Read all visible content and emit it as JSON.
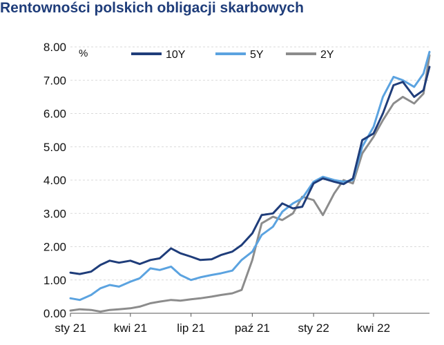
{
  "chart_data": {
    "type": "line",
    "title": "Rentowności polskich obligacji skarbowych",
    "unit_label": "%",
    "ylim": [
      0,
      8
    ],
    "y_ticks": [
      "0.00",
      "1.00",
      "2.00",
      "3.00",
      "4.00",
      "5.00",
      "6.00",
      "7.00",
      "8.00"
    ],
    "x_tick_labels": [
      "sty 21",
      "kwi 21",
      "lip 21",
      "paź 21",
      "sty 22",
      "kwi 22"
    ],
    "x_ticks": [
      "2021-01-01",
      "2021-04-01",
      "2021-07-01",
      "2021-10-01",
      "2022-01-01",
      "2022-04-01"
    ],
    "xlim": [
      "2021-01-01",
      "2022-06-24"
    ],
    "grid": "horizontal",
    "legend_position": "top",
    "series": [
      {
        "name": "10Y",
        "color": "#1f3d7a",
        "x": [
          "2021-01-01",
          "2021-01-15",
          "2021-02-01",
          "2021-02-15",
          "2021-03-01",
          "2021-03-15",
          "2021-04-01",
          "2021-04-15",
          "2021-05-01",
          "2021-05-15",
          "2021-06-01",
          "2021-06-15",
          "2021-07-01",
          "2021-07-15",
          "2021-08-01",
          "2021-08-15",
          "2021-09-01",
          "2021-09-15",
          "2021-10-01",
          "2021-10-15",
          "2021-11-01",
          "2021-11-15",
          "2021-12-01",
          "2021-12-15",
          "2022-01-01",
          "2022-01-15",
          "2022-02-01",
          "2022-02-15",
          "2022-03-01",
          "2022-03-15",
          "2022-04-01",
          "2022-04-15",
          "2022-05-01",
          "2022-05-15",
          "2022-06-01",
          "2022-06-15",
          "2022-06-24"
        ],
        "values": [
          1.22,
          1.18,
          1.25,
          1.45,
          1.58,
          1.52,
          1.58,
          1.48,
          1.6,
          1.65,
          1.95,
          1.8,
          1.7,
          1.6,
          1.62,
          1.75,
          1.85,
          2.05,
          2.4,
          2.95,
          3.0,
          3.3,
          3.15,
          3.2,
          3.9,
          4.05,
          3.95,
          3.88,
          4.05,
          5.2,
          5.4,
          6.0,
          6.85,
          6.95,
          6.5,
          6.7,
          7.4
        ]
      },
      {
        "name": "5Y",
        "color": "#5ba3e0",
        "x": [
          "2021-01-01",
          "2021-01-15",
          "2021-02-01",
          "2021-02-15",
          "2021-03-01",
          "2021-03-15",
          "2021-04-01",
          "2021-04-15",
          "2021-05-01",
          "2021-05-15",
          "2021-06-01",
          "2021-06-15",
          "2021-07-01",
          "2021-07-15",
          "2021-08-01",
          "2021-08-15",
          "2021-09-01",
          "2021-09-15",
          "2021-10-01",
          "2021-10-15",
          "2021-11-01",
          "2021-11-15",
          "2021-12-01",
          "2021-12-15",
          "2022-01-01",
          "2022-01-15",
          "2022-02-01",
          "2022-02-15",
          "2022-03-01",
          "2022-03-15",
          "2022-04-01",
          "2022-04-15",
          "2022-05-01",
          "2022-05-15",
          "2022-06-01",
          "2022-06-15",
          "2022-06-24"
        ],
        "values": [
          0.45,
          0.4,
          0.55,
          0.75,
          0.85,
          0.8,
          0.95,
          1.05,
          1.35,
          1.3,
          1.4,
          1.15,
          1.0,
          1.08,
          1.15,
          1.2,
          1.28,
          1.6,
          1.85,
          2.35,
          2.6,
          3.05,
          3.3,
          3.45,
          3.95,
          4.1,
          4.0,
          3.95,
          4.0,
          5.0,
          5.6,
          6.5,
          7.1,
          7.0,
          6.8,
          7.2,
          7.85
        ]
      },
      {
        "name": "2Y",
        "color": "#8c8c8c",
        "x": [
          "2021-01-01",
          "2021-01-15",
          "2021-02-01",
          "2021-02-15",
          "2021-03-01",
          "2021-03-15",
          "2021-04-01",
          "2021-04-15",
          "2021-05-01",
          "2021-05-15",
          "2021-06-01",
          "2021-06-15",
          "2021-07-01",
          "2021-07-15",
          "2021-08-01",
          "2021-08-15",
          "2021-09-01",
          "2021-09-15",
          "2021-10-01",
          "2021-10-15",
          "2021-11-01",
          "2021-11-15",
          "2021-12-01",
          "2021-12-15",
          "2022-01-01",
          "2022-01-15",
          "2022-02-01",
          "2022-02-15",
          "2022-03-01",
          "2022-03-15",
          "2022-04-01",
          "2022-04-15",
          "2022-05-01",
          "2022-05-15",
          "2022-06-01",
          "2022-06-15",
          "2022-06-24"
        ],
        "values": [
          0.08,
          0.12,
          0.1,
          0.05,
          0.1,
          0.12,
          0.15,
          0.2,
          0.3,
          0.35,
          0.4,
          0.38,
          0.42,
          0.45,
          0.5,
          0.55,
          0.6,
          0.7,
          1.6,
          2.7,
          2.9,
          2.8,
          3.0,
          3.5,
          3.4,
          2.95,
          3.6,
          4.0,
          3.9,
          4.8,
          5.3,
          5.8,
          6.3,
          6.5,
          6.3,
          6.6,
          7.75
        ]
      }
    ]
  }
}
